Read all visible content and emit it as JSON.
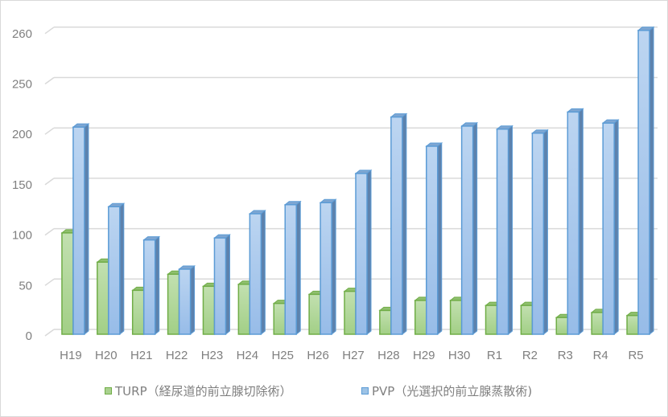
{
  "chart_data": {
    "type": "bar",
    "style": "clustered-3d-column",
    "title": "",
    "xlabel": "",
    "ylabel": "",
    "categories": [
      "H19",
      "H20",
      "H21",
      "H22",
      "H23",
      "H24",
      "H25",
      "H26",
      "H27",
      "H28",
      "H29",
      "H30",
      "R1",
      "R2",
      "R3",
      "R4",
      "R5"
    ],
    "series": [
      {
        "name": "TURP（経尿道的前立腺切除術）",
        "color": "#a9d18e",
        "border": "#70ad47",
        "values": [
          99,
          70,
          42,
          58,
          46,
          48,
          29,
          38,
          41,
          22,
          32,
          32,
          27,
          27,
          15,
          20,
          17
        ]
      },
      {
        "name": "PVP（光選択的前立腺蒸散術)",
        "color": "#9dc3e6",
        "border": "#5b9bd5",
        "values": [
          204,
          125,
          92,
          63,
          94,
          118,
          127,
          129,
          158,
          214,
          185,
          205,
          202,
          198,
          219,
          208,
          260
        ]
      }
    ],
    "y_ticks": [
      0,
      50,
      100,
      150,
      200,
      250,
      260
    ],
    "ylim": [
      0,
      260
    ],
    "grid": true,
    "legend_position": "bottom"
  },
  "legend": {
    "turp_label": "TURP（経尿道的前立腺切除術）",
    "pvp_label": "PVP（光選択的前立腺蒸散術)"
  }
}
